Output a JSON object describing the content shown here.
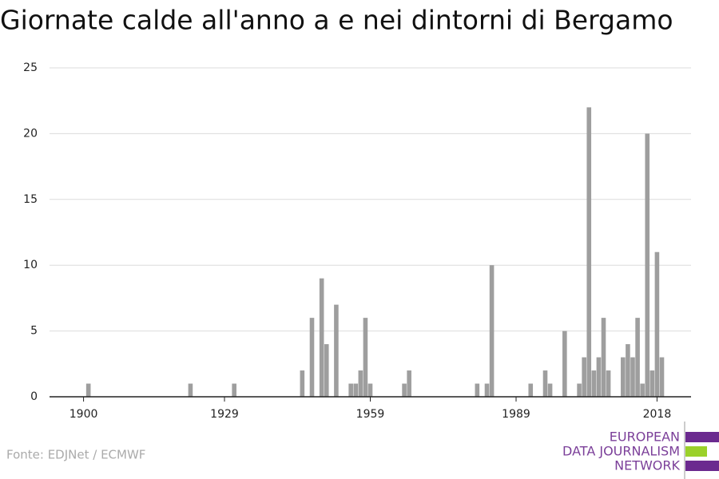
{
  "chart_data": {
    "type": "bar",
    "title": "Giornate calde all'anno a e nei dintorni di Bergamo",
    "source": "Fonte: EDJNet / ECMWF",
    "x": [
      1901,
      1922,
      1931,
      1945,
      1947,
      1949,
      1950,
      1952,
      1955,
      1956,
      1957,
      1958,
      1959,
      1966,
      1967,
      1981,
      1983,
      1984,
      1992,
      1995,
      1996,
      1999,
      2002,
      2003,
      2004,
      2005,
      2006,
      2007,
      2008,
      2011,
      2012,
      2013,
      2014,
      2015,
      2016,
      2017,
      2018,
      2019
    ],
    "values": [
      1,
      1,
      1,
      2,
      6,
      9,
      4,
      7,
      1,
      1,
      2,
      6,
      1,
      1,
      2,
      1,
      1,
      10,
      1,
      2,
      1,
      5,
      1,
      3,
      22,
      2,
      3,
      6,
      2,
      3,
      4,
      3,
      6,
      1,
      20,
      2,
      11,
      3
    ],
    "color": "#9e9e9e",
    "xlim": [
      1893,
      2025
    ],
    "xticks": [
      1900,
      1929,
      1959,
      1989,
      2018
    ],
    "ylim": [
      0,
      25
    ],
    "yticks": [
      0,
      5,
      10,
      15,
      20,
      25
    ],
    "grid": true
  },
  "logo": {
    "lines": [
      "EUROPEAN",
      "DATA JOURNALISM",
      "NETWORK"
    ]
  }
}
